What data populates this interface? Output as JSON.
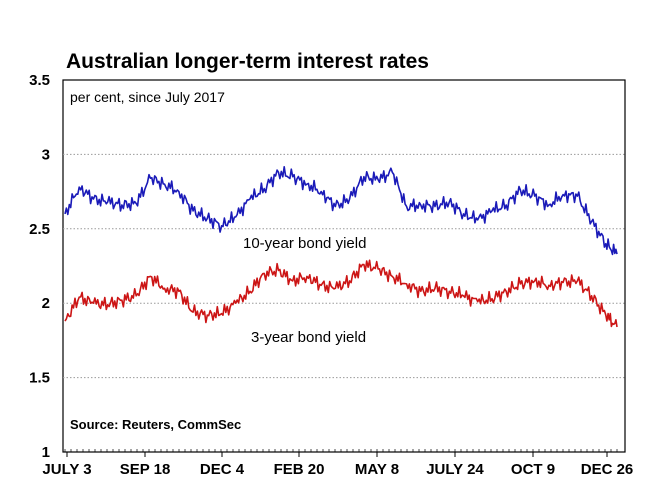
{
  "chart_data": {
    "type": "line",
    "title": "Australian longer-term interest rates",
    "subtitle": "per cent, since July 2017",
    "source": "Source: Reuters, CommSec",
    "xlabel": "",
    "ylabel": "",
    "ylim": [
      1,
      3.5
    ],
    "yticks": [
      1,
      1.5,
      2,
      2.5,
      3,
      3.5
    ],
    "ytick_labels": [
      "1",
      "1.5",
      "2",
      "2.5",
      "3",
      "3.5"
    ],
    "x_tick_labels": [
      "JULY 3",
      "SEP 18",
      "DEC 4",
      "FEB 20",
      "MAY 8",
      "JULY 24",
      "OCT 9",
      "DEC 26"
    ],
    "grid": true,
    "x": [
      "2017-07-03",
      "2017-07-17",
      "2017-07-31",
      "2017-08-14",
      "2017-08-28",
      "2017-09-11",
      "2017-09-25",
      "2017-10-09",
      "2017-10-23",
      "2017-11-06",
      "2017-11-20",
      "2017-12-04",
      "2017-12-18",
      "2018-01-01",
      "2018-01-15",
      "2018-01-29",
      "2018-02-12",
      "2018-02-26",
      "2018-03-12",
      "2018-03-26",
      "2018-04-09",
      "2018-04-23",
      "2018-05-07",
      "2018-05-21",
      "2018-06-04",
      "2018-06-18",
      "2018-07-02",
      "2018-07-16",
      "2018-07-30",
      "2018-08-13",
      "2018-08-27",
      "2018-09-10",
      "2018-09-24",
      "2018-10-08",
      "2018-10-22",
      "2018-11-05",
      "2018-11-19",
      "2018-12-03",
      "2018-12-17",
      "2018-12-28"
    ],
    "series": [
      {
        "name": "10-year bond yield",
        "color": "#1a1ab8",
        "values": [
          2.6,
          2.78,
          2.7,
          2.68,
          2.66,
          2.67,
          2.84,
          2.8,
          2.75,
          2.62,
          2.57,
          2.52,
          2.58,
          2.7,
          2.77,
          2.88,
          2.85,
          2.8,
          2.75,
          2.65,
          2.7,
          2.85,
          2.83,
          2.88,
          2.65,
          2.66,
          2.65,
          2.68,
          2.6,
          2.56,
          2.62,
          2.66,
          2.76,
          2.72,
          2.66,
          2.73,
          2.72,
          2.55,
          2.4,
          2.33
        ]
      },
      {
        "name": "3-year bond yield",
        "color": "#cc1515",
        "values": [
          1.88,
          2.04,
          2.0,
          1.99,
          2.02,
          2.05,
          2.18,
          2.1,
          2.08,
          1.94,
          1.92,
          1.93,
          2.0,
          2.08,
          2.2,
          2.22,
          2.15,
          2.18,
          2.12,
          2.1,
          2.15,
          2.26,
          2.23,
          2.18,
          2.13,
          2.08,
          2.1,
          2.08,
          2.05,
          2.01,
          2.03,
          2.08,
          2.13,
          2.15,
          2.12,
          2.14,
          2.15,
          2.05,
          1.92,
          1.84
        ]
      }
    ],
    "annotations": [
      "10-year bond yield",
      "3-year bond yield"
    ]
  }
}
